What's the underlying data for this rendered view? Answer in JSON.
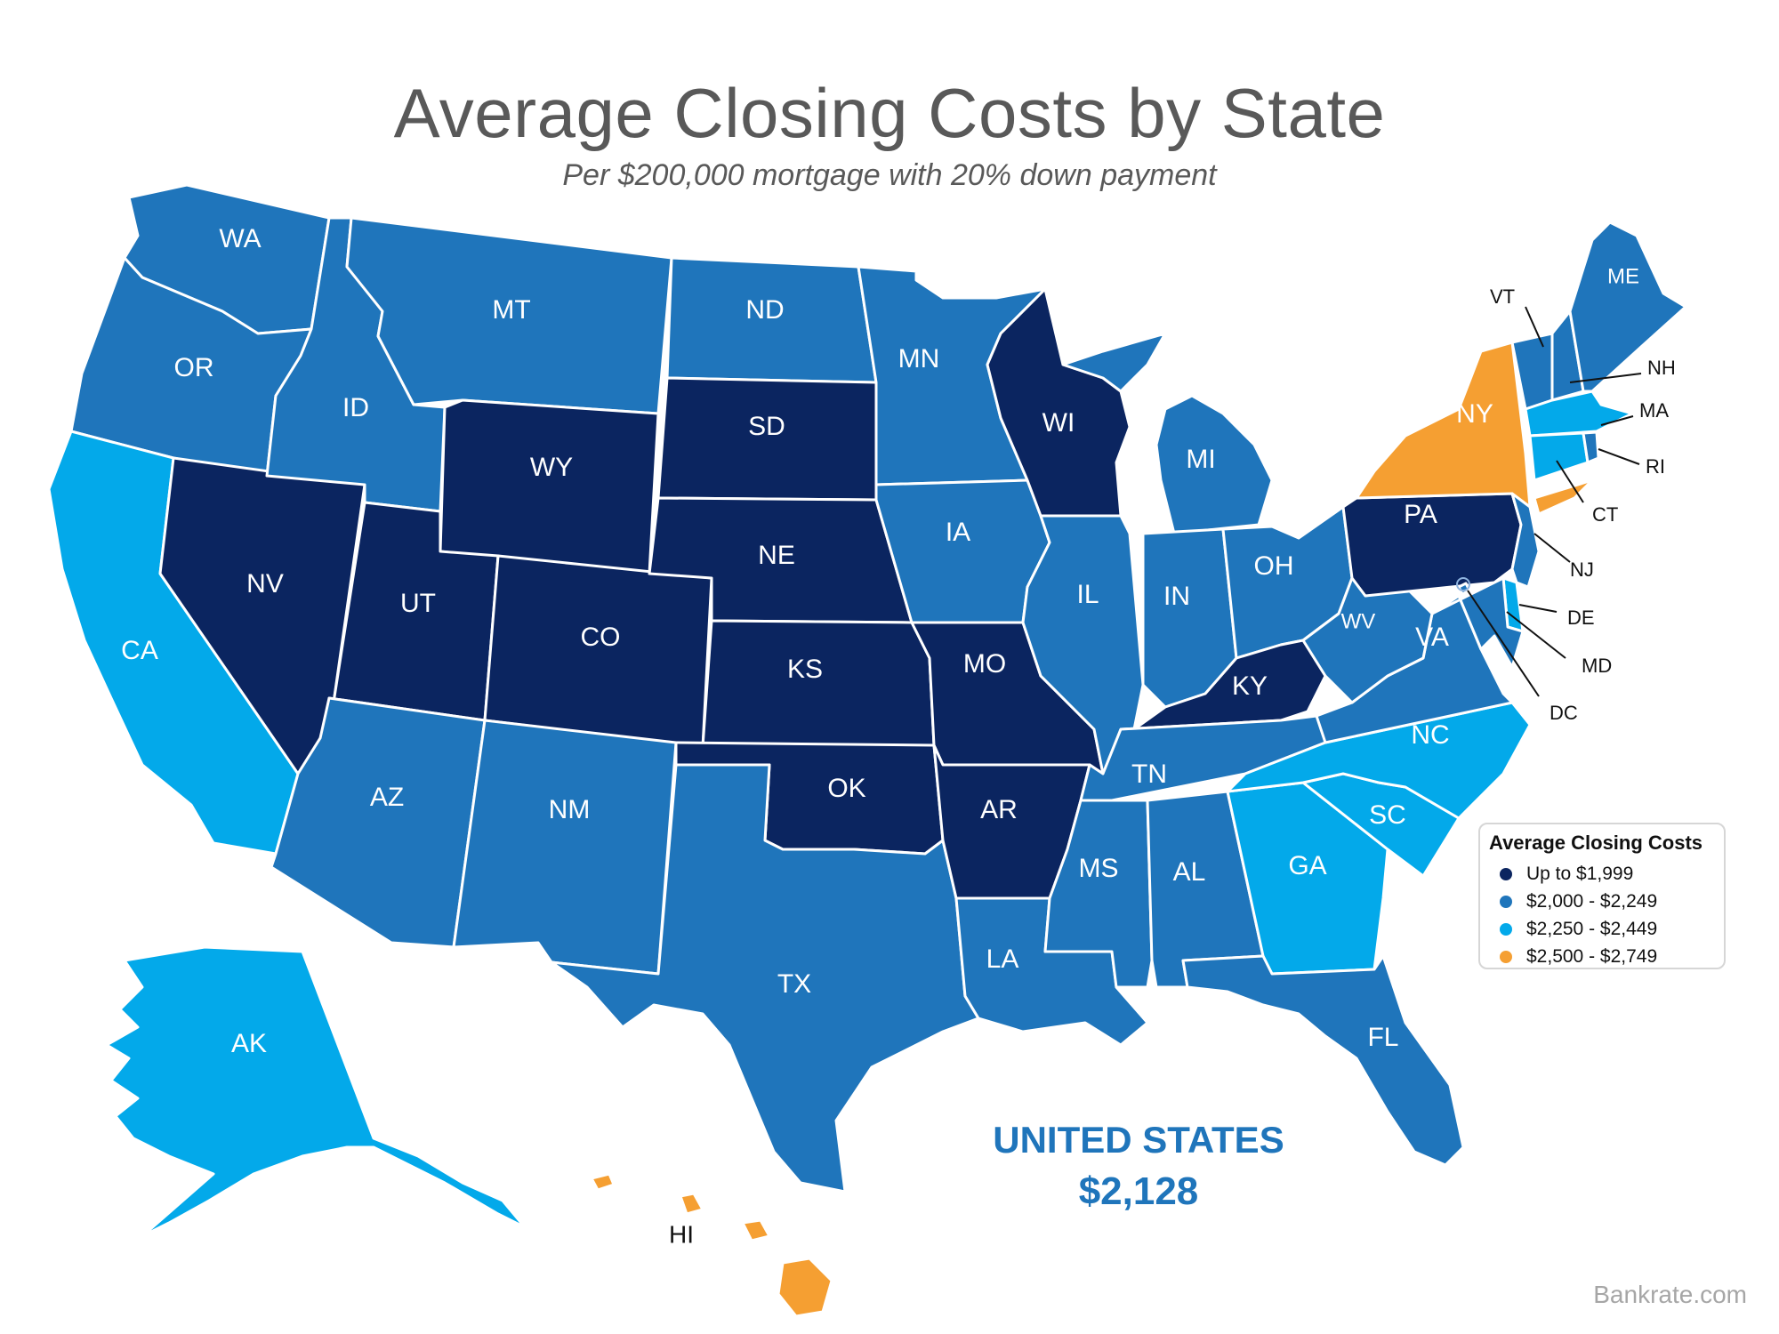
{
  "title": "Average Closing Costs by State",
  "subtitle": "Per $200,000 mortgage with 20% down payment",
  "legend": {
    "title": "Average Closing Costs",
    "tiers": [
      {
        "label": "Up to $1,999",
        "color": "#0b2560"
      },
      {
        "label": "$2,000 - $2,249",
        "color": "#1f75bb"
      },
      {
        "label": "$2,250 - $2,449",
        "color": "#03a9ea"
      },
      {
        "label": "$2,500 - $2,749",
        "color": "#f59f32"
      }
    ]
  },
  "national": {
    "label": "UNITED STATES",
    "value": "$2,128"
  },
  "source": "Bankrate.com",
  "states": {
    "WA": {
      "label": "WA",
      "tier": 1
    },
    "OR": {
      "label": "OR",
      "tier": 1
    },
    "CA": {
      "label": "CA",
      "tier": 2
    },
    "NV": {
      "label": "NV",
      "tier": 0
    },
    "ID": {
      "label": "ID",
      "tier": 1
    },
    "MT": {
      "label": "MT",
      "tier": 1
    },
    "WY": {
      "label": "WY",
      "tier": 0
    },
    "UT": {
      "label": "UT",
      "tier": 0
    },
    "CO": {
      "label": "CO",
      "tier": 0
    },
    "AZ": {
      "label": "AZ",
      "tier": 1
    },
    "NM": {
      "label": "NM",
      "tier": 1
    },
    "ND": {
      "label": "ND",
      "tier": 1
    },
    "SD": {
      "label": "SD",
      "tier": 0
    },
    "NE": {
      "label": "NE",
      "tier": 0
    },
    "KS": {
      "label": "KS",
      "tier": 0
    },
    "OK": {
      "label": "OK",
      "tier": 0
    },
    "TX": {
      "label": "TX",
      "tier": 1
    },
    "MN": {
      "label": "MN",
      "tier": 1
    },
    "IA": {
      "label": "IA",
      "tier": 1
    },
    "MO": {
      "label": "MO",
      "tier": 0
    },
    "AR": {
      "label": "AR",
      "tier": 0
    },
    "LA": {
      "label": "LA",
      "tier": 1
    },
    "WI": {
      "label": "WI",
      "tier": 0
    },
    "IL": {
      "label": "IL",
      "tier": 1
    },
    "MI": {
      "label": "MI",
      "tier": 1
    },
    "IN": {
      "label": "IN",
      "tier": 1
    },
    "OH": {
      "label": "OH",
      "tier": 1
    },
    "KY": {
      "label": "KY",
      "tier": 0
    },
    "TN": {
      "label": "TN",
      "tier": 1
    },
    "MS": {
      "label": "MS",
      "tier": 1
    },
    "AL": {
      "label": "AL",
      "tier": 1
    },
    "GA": {
      "label": "GA",
      "tier": 2
    },
    "FL": {
      "label": "FL",
      "tier": 1
    },
    "SC": {
      "label": "SC",
      "tier": 2
    },
    "NC": {
      "label": "NC",
      "tier": 2
    },
    "VA": {
      "label": "VA",
      "tier": 1
    },
    "WV": {
      "label": "WV",
      "tier": 1
    },
    "PA": {
      "label": "PA",
      "tier": 0
    },
    "NY": {
      "label": "NY",
      "tier": 3
    },
    "ME": {
      "label": "ME",
      "tier": 1
    },
    "VT": {
      "label": "VT",
      "tier": 1
    },
    "NH": {
      "label": "NH",
      "tier": 1
    },
    "MA": {
      "label": "MA",
      "tier": 2
    },
    "RI": {
      "label": "RI",
      "tier": 1
    },
    "CT": {
      "label": "CT",
      "tier": 2
    },
    "NJ": {
      "label": "NJ",
      "tier": 1
    },
    "DE": {
      "label": "DE",
      "tier": 2
    },
    "MD": {
      "label": "MD",
      "tier": 1
    },
    "DC": {
      "label": "DC",
      "tier": 1
    },
    "AK": {
      "label": "AK",
      "tier": 2
    },
    "HI": {
      "label": "HI",
      "tier": 3
    }
  }
}
